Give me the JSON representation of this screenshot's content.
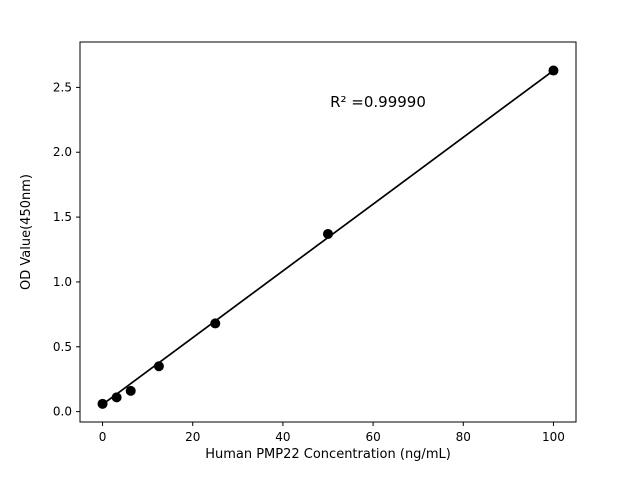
{
  "figure": {
    "background": "#ffffff"
  },
  "chart_data": {
    "type": "scatter",
    "title": "",
    "xlabel": "Human PMP22 Concentration (ng/mL)",
    "ylabel": "OD Value(450nm)",
    "annotation": {
      "text": "R² =0.99990"
    },
    "x": [
      0,
      3.125,
      6.25,
      12.5,
      25,
      50,
      100
    ],
    "y": [
      0.06,
      0.11,
      0.16,
      0.35,
      0.68,
      1.37,
      2.63
    ],
    "fit_line": {
      "x1": 0,
      "y1": 0.055,
      "x2": 100,
      "y2": 2.63
    },
    "xlim": [
      -5,
      105
    ],
    "ylim": [
      -0.08,
      2.85
    ],
    "xtick_values": [
      0,
      20,
      40,
      60,
      80,
      100
    ],
    "xtick_labels": [
      "0",
      "20",
      "40",
      "60",
      "80",
      "100"
    ],
    "ytick_values": [
      0,
      0.5,
      1.0,
      1.5,
      2.0,
      2.5
    ],
    "ytick_labels": [
      "0.0",
      "0.5",
      "1.0",
      "1.5",
      "2.0",
      "2.5"
    ],
    "point_color": "#000000",
    "line_color": "#000000",
    "frame_color": "#000000",
    "marker_radius": 5,
    "grid": false,
    "legend_position": "none"
  }
}
